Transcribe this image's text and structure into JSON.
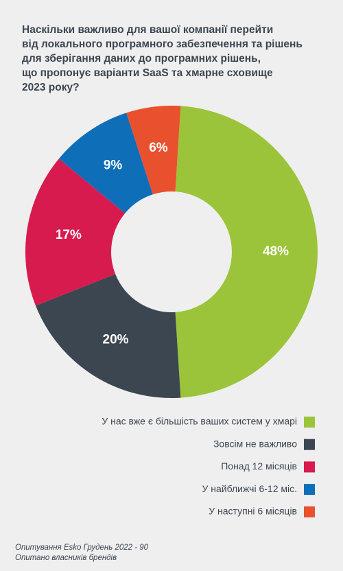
{
  "chart_data": {
    "type": "donut",
    "title": [
      "Наскільки важливо для вашої компанії перейти",
      "від локального програмного забезпечення та рішень",
      "для зберігання даних до програмних рішень,",
      "що пропонує варіанти SaaS та хмарне сховище",
      "2023 року?"
    ],
    "categories": [
      "У нас вже є більшість ваших систем у хмарі",
      "Зовсім не важливо",
      "Понад 12 місяців",
      "У найближчі 6-12 міс.",
      "У наступні 6 місяців"
    ],
    "values": [
      48,
      20,
      17,
      9,
      6
    ],
    "value_labels": [
      "48%",
      "20%",
      "17%",
      "9%",
      "6%"
    ],
    "colors": [
      "#9cc43a",
      "#3c4651",
      "#d81b4f",
      "#0e6eb8",
      "#e8502e"
    ],
    "footnote": [
      "Опитування Esko Грудень 2022 - 90",
      "Опитано власників брендів"
    ]
  }
}
